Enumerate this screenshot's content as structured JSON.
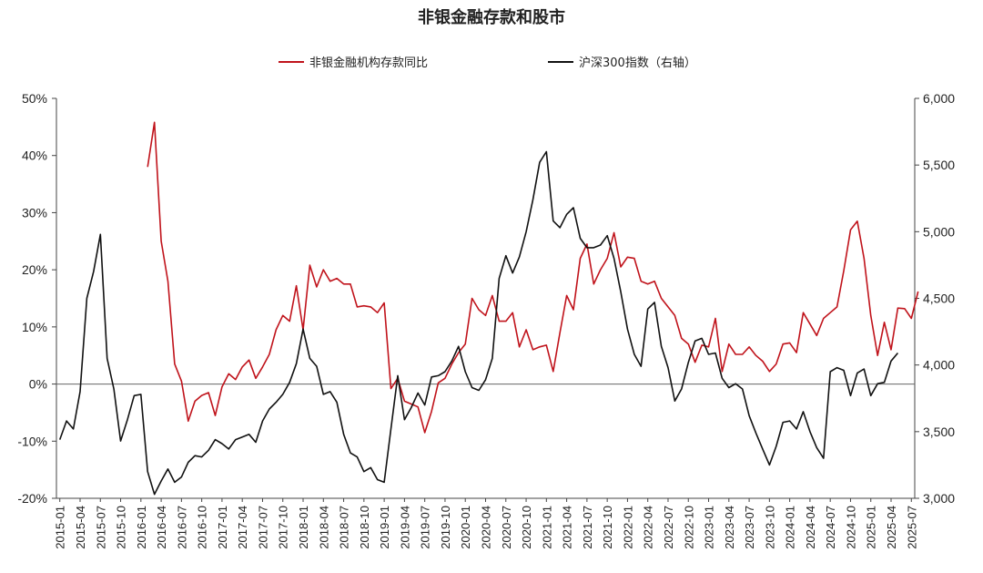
{
  "chart_data": {
    "type": "line",
    "title": "非银金融存款和股市",
    "legend": [
      {
        "name": "非银金融机构存款同比",
        "color": "#c0131b",
        "axis": "left"
      },
      {
        "name": "沪深300指数（右轴）",
        "color": "#111111",
        "axis": "right"
      }
    ],
    "legend_position": "top",
    "y_left": {
      "ylim": [
        -20,
        50
      ],
      "ticks": [
        50,
        40,
        30,
        20,
        10,
        0,
        -10,
        -20
      ],
      "tick_labels": [
        "50%",
        "40%",
        "30%",
        "20%",
        "10%",
        "0%",
        "-10%",
        "-20%"
      ]
    },
    "y_right": {
      "ylim": [
        3000,
        6000
      ],
      "ticks": [
        6000,
        5500,
        5000,
        4500,
        4000,
        3500,
        3000
      ],
      "tick_labels": [
        "6,000",
        "5,500",
        "5,000",
        "4,500",
        "4,000",
        "3,500",
        "3,000"
      ]
    },
    "x_start": "2015-01",
    "x_ticks": [
      "2015-01",
      "2015-04",
      "2015-07",
      "2015-10",
      "2016-01",
      "2016-04",
      "2016-07",
      "2016-10",
      "2017-01",
      "2017-04",
      "2017-07",
      "2017-10",
      "2018-01",
      "2018-04",
      "2018-07",
      "2018-10",
      "2019-01",
      "2019-04",
      "2019-07",
      "2019-10",
      "2020-01",
      "2020-04",
      "2020-07",
      "2020-10",
      "2021-01",
      "2021-04",
      "2021-07",
      "2021-10",
      "2022-01",
      "2022-04",
      "2022-07",
      "2022-10",
      "2023-01",
      "2023-04",
      "2023-07",
      "2023-10",
      "2024-01",
      "2024-04",
      "2024-07",
      "2024-10",
      "2025-01",
      "2025-04",
      "2025-07"
    ],
    "series": [
      {
        "name": "非银金融机构存款同比",
        "axis": "left",
        "start": "2016-02",
        "values": [
          38,
          45.8,
          25,
          18,
          3.5,
          0.5,
          -6.5,
          -3,
          -2,
          -1.5,
          -5.5,
          -0.5,
          1.8,
          0.8,
          3,
          4.2,
          1,
          3,
          5.2,
          9.5,
          12,
          11,
          17.2,
          9.5,
          20.8,
          17,
          20,
          18,
          18.5,
          17.5,
          17.5,
          13.5,
          13.7,
          13.5,
          12.5,
          14.2,
          -0.8,
          1,
          -3,
          -3.5,
          -4,
          -8.5,
          -4.8,
          0.2,
          1,
          3.5,
          5.5,
          7,
          15,
          13,
          12,
          15.5,
          11,
          11,
          12.5,
          6.5,
          9.5,
          6,
          6.5,
          6.8,
          2.2,
          9,
          15.5,
          13,
          22,
          24.5,
          17.5,
          20,
          22,
          26.5,
          20.5,
          22.2,
          22,
          18,
          17.5,
          18,
          15,
          13.5,
          12,
          8,
          7,
          3.8,
          6.8,
          6.5,
          11.5,
          2.2,
          7,
          5.2,
          5.2,
          6.5,
          5,
          4,
          2.2,
          3.5,
          7,
          7.2,
          5.5,
          12.5,
          10.5,
          8.5,
          11.5,
          12.5,
          13.5,
          19.8,
          27,
          28.5,
          22,
          12,
          5,
          10.8,
          6,
          13.3,
          13.2,
          11.5,
          16.2
        ]
      },
      {
        "name": "沪深300指数（右轴）",
        "axis": "right",
        "start": "2015-01",
        "values": [
          3440,
          3580,
          3520,
          3800,
          4500,
          4700,
          4980,
          4050,
          3820,
          3430,
          3590,
          3770,
          3780,
          3200,
          3030,
          3130,
          3220,
          3120,
          3160,
          3270,
          3320,
          3310,
          3360,
          3440,
          3410,
          3370,
          3440,
          3460,
          3480,
          3420,
          3580,
          3670,
          3720,
          3780,
          3870,
          4010,
          4270,
          4050,
          3990,
          3780,
          3800,
          3720,
          3480,
          3340,
          3310,
          3200,
          3230,
          3140,
          3120,
          3520,
          3920,
          3590,
          3680,
          3790,
          3700,
          3910,
          3920,
          3950,
          4030,
          4140,
          3950,
          3830,
          3810,
          3890,
          4050,
          4650,
          4820,
          4690,
          4810,
          5000,
          5240,
          5520,
          5600,
          5080,
          5030,
          5130,
          5180,
          4950,
          4880,
          4880,
          4900,
          4970,
          4800,
          4550,
          4270,
          4080,
          3990,
          4420,
          4470,
          4140,
          3980,
          3730,
          3820,
          4020,
          4180,
          4200,
          4080,
          4090,
          3900,
          3830,
          3860,
          3820,
          3620,
          3490,
          3370,
          3250,
          3390,
          3570,
          3580,
          3520,
          3650,
          3500,
          3380,
          3300,
          3950,
          3980,
          3960,
          3770,
          3940,
          3970,
          3770,
          3860,
          3870,
          4030,
          4090
        ]
      }
    ]
  }
}
